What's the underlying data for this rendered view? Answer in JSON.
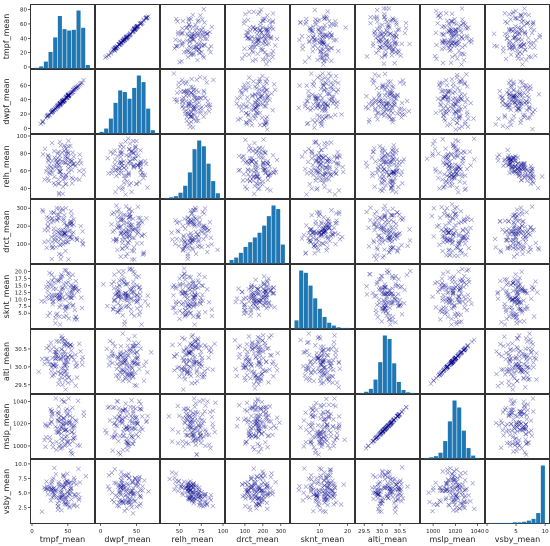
{
  "chart_data": {
    "type": "scatter",
    "variables": [
      "tmpf_mean",
      "dwpf_mean",
      "relh_mean",
      "drct_mean",
      "sknt_mean",
      "alti_mean",
      "mslp_mean",
      "vsby_mean"
    ],
    "ranges": {
      "tmpf_mean": [
        0,
        85
      ],
      "dwpf_mean": [
        -5,
        80
      ],
      "relh_mean": [
        30,
        100
      ],
      "drct_mean": [
        0,
        340
      ],
      "sknt_mean": [
        0,
        22
      ],
      "alti_mean": [
        29.3,
        31.0
      ],
      "mslp_mean": [
        990,
        1045
      ],
      "vsby_mean": [
        0,
        10.5
      ]
    },
    "y_ticks": [
      {
        "variable": "tmpf_mean",
        "values": [
          0,
          20,
          40,
          60,
          80
        ],
        "labels": [
          "0",
          "20",
          "40",
          "60",
          "80"
        ]
      },
      {
        "variable": "dwpf_mean",
        "values": [
          0,
          20,
          40,
          60
        ],
        "labels": [
          "0",
          "20",
          "40",
          "60"
        ]
      },
      {
        "variable": "relh_mean",
        "values": [
          40,
          60,
          80,
          100
        ],
        "labels": [
          "40",
          "60",
          "80",
          "100"
        ]
      },
      {
        "variable": "drct_mean",
        "values": [
          100,
          200,
          300
        ],
        "labels": [
          "100",
          "200",
          "300"
        ]
      },
      {
        "variable": "sknt_mean",
        "values": [
          5,
          7.5,
          10,
          12.5,
          15,
          17.5,
          20
        ],
        "labels": [
          "5.0",
          "7.5",
          "10.0",
          "12.5",
          "15.0",
          "17.5",
          "20.0"
        ]
      },
      {
        "variable": "alti_mean",
        "values": [
          29.5,
          30,
          30.5
        ],
        "labels": [
          "29.5",
          "30.0",
          "30.5"
        ]
      },
      {
        "variable": "mslp_mean",
        "values": [
          1000,
          1020,
          1040
        ],
        "labels": [
          "1000",
          "1020",
          "1040"
        ]
      },
      {
        "variable": "vsby_mean",
        "values": [
          2.5,
          5,
          7.5,
          10
        ],
        "labels": [
          "2.5",
          "5.0",
          "7.5",
          "10.0"
        ]
      }
    ],
    "x_ticks": [
      {
        "variable": "tmpf_mean",
        "values": [
          0,
          50
        ],
        "labels": [
          "0",
          "50"
        ]
      },
      {
        "variable": "dwpf_mean",
        "values": [
          0,
          50
        ],
        "labels": [
          "0",
          "50"
        ]
      },
      {
        "variable": "relh_mean",
        "values": [
          50,
          75,
          100
        ],
        "labels": [
          "50",
          "75",
          "100"
        ]
      },
      {
        "variable": "drct_mean",
        "values": [
          100,
          200,
          300
        ],
        "labels": [
          "100",
          "200",
          "300"
        ]
      },
      {
        "variable": "sknt_mean",
        "values": [
          10,
          20
        ],
        "labels": [
          "10",
          "20"
        ]
      },
      {
        "variable": "alti_mean",
        "values": [
          29.5,
          30,
          30.5
        ],
        "labels": [
          "29.5",
          "30.0",
          "30.5"
        ]
      },
      {
        "variable": "mslp_mean",
        "values": [
          1000,
          1020,
          1040
        ],
        "labels": [
          "1000",
          "1020",
          "1040"
        ]
      },
      {
        "variable": "vsby_mean",
        "values": [
          0,
          5,
          10
        ],
        "labels": [
          "0",
          "5",
          "10"
        ]
      }
    ],
    "histograms": [
      {
        "variable": "tmpf_mean",
        "counts": [
          1,
          3,
          10,
          24,
          45,
          76,
          57,
          55,
          56,
          84,
          59,
          5
        ]
      },
      {
        "variable": "dwpf_mean",
        "counts": [
          2,
          6,
          18,
          37,
          52,
          50,
          42,
          55,
          70,
          62,
          30,
          4
        ]
      },
      {
        "variable": "relh_mean",
        "counts": [
          1,
          2,
          4,
          10,
          22,
          45,
          85,
          100,
          90,
          60,
          30,
          9
        ]
      },
      {
        "variable": "drct_mean",
        "counts": [
          6,
          10,
          18,
          28,
          36,
          44,
          52,
          64,
          80,
          98,
          92,
          32
        ]
      },
      {
        "variable": "sknt_mean",
        "counts": [
          14,
          100,
          96,
          74,
          52,
          34,
          20,
          10,
          5,
          2,
          1,
          1
        ]
      },
      {
        "variable": "alti_mean",
        "counts": [
          1,
          3,
          8,
          24,
          54,
          100,
          94,
          52,
          20,
          6,
          2,
          1
        ]
      },
      {
        "variable": "mslp_mean",
        "counts": [
          1,
          2,
          4,
          10,
          30,
          64,
          100,
          88,
          48,
          18,
          5,
          1
        ]
      },
      {
        "variable": "vsby_mean",
        "counts": [
          1,
          1,
          1,
          1,
          1,
          2,
          2,
          3,
          5,
          8,
          18,
          100
        ]
      }
    ],
    "correlation_strength": [
      {
        "pair": [
          "tmpf_mean",
          "dwpf_mean"
        ],
        "r": 0.95
      },
      {
        "pair": [
          "alti_mean",
          "mslp_mean"
        ],
        "r": 0.98
      },
      {
        "pair": [
          "relh_mean",
          "vsby_mean"
        ],
        "r": -0.6
      },
      {
        "pair": [
          "drct_mean",
          "sknt_mean"
        ],
        "r": 0.3
      }
    ],
    "marker": "x",
    "marker_color": "#00008b",
    "bar_color": "#1f77b4"
  }
}
